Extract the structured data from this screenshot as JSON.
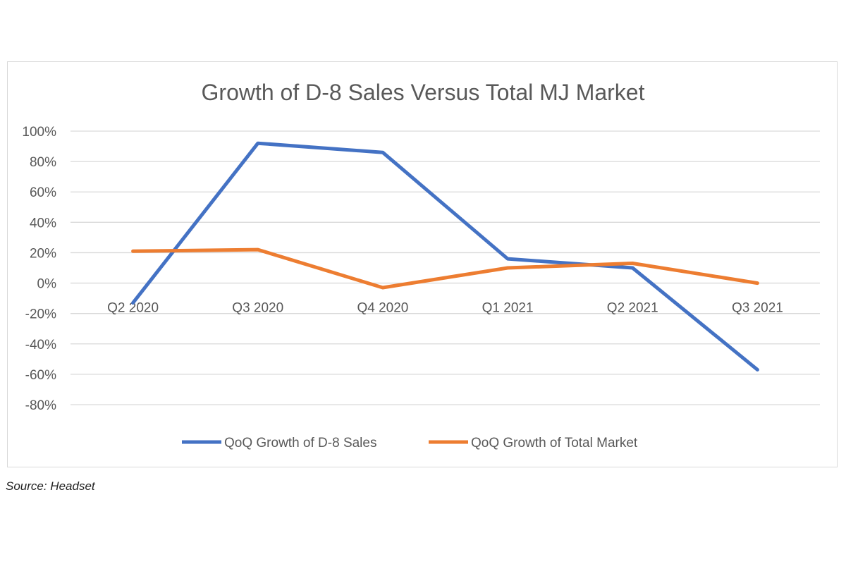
{
  "chart_data": {
    "type": "line",
    "title": "Growth of D-8 Sales Versus Total MJ Market",
    "categories": [
      "Q2 2020",
      "Q3 2020",
      "Q4 2020",
      "Q1 2021",
      "Q2 2021",
      "Q3 2021"
    ],
    "y_tick_labels": [
      "100%",
      "80%",
      "60%",
      "40%",
      "20%",
      "0%",
      "-20%",
      "-40%",
      "-60%",
      "-80%"
    ],
    "y_ticks": [
      100,
      80,
      60,
      40,
      20,
      0,
      -20,
      -40,
      -60,
      -80
    ],
    "ylim": [
      -80,
      100
    ],
    "grid": true,
    "legend_position": "bottom",
    "series": [
      {
        "name": "QoQ Growth of D-8 Sales",
        "color": "#4472c4",
        "values": [
          -13,
          92,
          86,
          16,
          10,
          -57
        ]
      },
      {
        "name": "QoQ Growth of Total Market",
        "color": "#ed7d31",
        "values": [
          21,
          22,
          -3,
          10,
          13,
          0
        ]
      }
    ]
  },
  "source": "Source: Headset"
}
